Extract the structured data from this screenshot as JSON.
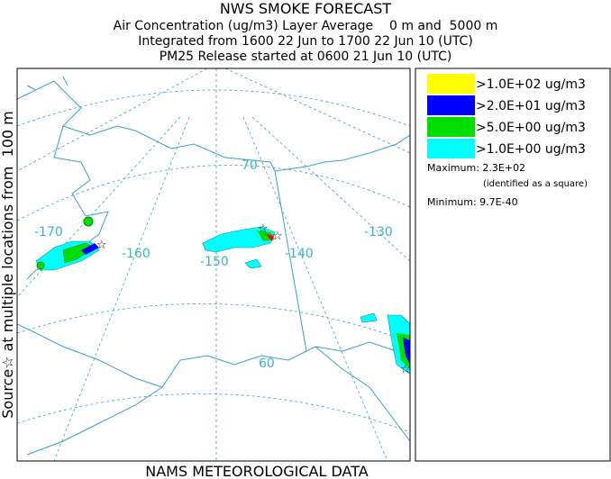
{
  "header": {
    "title": "NWS SMOKE FORECAST",
    "lines": [
      "Air Concentration (ug/m3) Layer Average    0 m and  5000 m",
      "Integrated from 1600 22 Jun to 1700 22 Jun 10 (UTC)",
      "PM25 Release started at 0600 21 Jun 10 (UTC)"
    ]
  },
  "side_label": "Source☆ at multiple locations from  100 m",
  "footer": "NAMS METEOROLOGICAL DATA",
  "map": {
    "labels": [
      "-170",
      "-160",
      "-150",
      "-140",
      "-130",
      "70",
      "60"
    ]
  },
  "legend": {
    "items": [
      {
        "label": ">1.0E+02 ug/m3",
        "color": "#ffff00"
      },
      {
        "label": ">2.0E+01 ug/m3",
        "color": "#0000ff"
      },
      {
        "label": ">5.0E+00 ug/m3",
        "color": "#00dd00"
      },
      {
        "label": ">1.0E+00 ug/m3",
        "color": "#00ffff"
      }
    ],
    "maximum": "Maximum: 2.3E+02",
    "maximum_note": "(identified as a square)",
    "minimum": "Minimum: 9.7E-40"
  }
}
